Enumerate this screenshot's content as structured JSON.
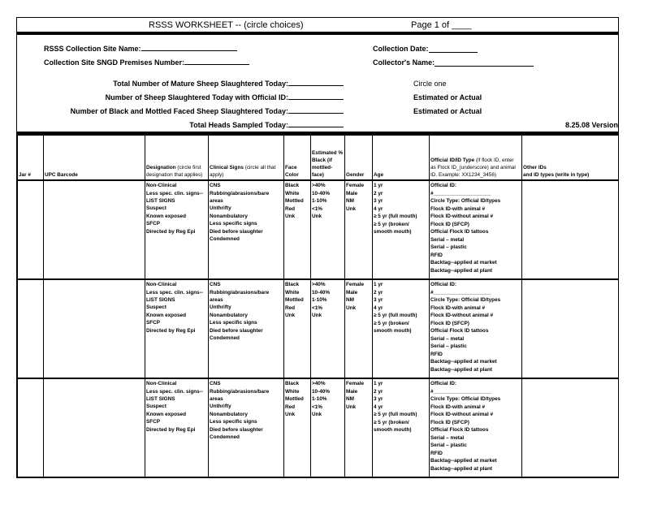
{
  "header": {
    "title": "RSSS WORKSHEET -- (circle choices)",
    "page": "Page 1 of ____"
  },
  "info": {
    "site_name": "RSSS Collection Site Name:",
    "premises": "Collection Site SNGD Premises Number:",
    "date": "Collection Date:",
    "collector": "Collector's Name:",
    "mature": "Total Number of Mature Sheep Slaughtered Today:",
    "official": "Number of Sheep Slaughtered Today with Official ID:",
    "black": "Number of Black and Mottled Faced Sheep Slaughtered Today:",
    "heads": "Total Heads Sampled Today:",
    "circle_one": "Circle one",
    "est1": "Estimated or Actual",
    "est2": "Estimated or Actual",
    "version": "8.25.08 Version"
  },
  "columns": {
    "jar": "Jar #",
    "upc": "UPC Barcode",
    "designation": "Designation",
    "designation_note": "(circle first designation that applies)",
    "clinical": "Clinical Signs",
    "clinical_note": "(circle all that apply)",
    "face": "Face Color",
    "est": "Estimated % Black",
    "est_note": "(if mottled-face)",
    "gender": "Gender",
    "age": "Age",
    "official": "Official ID/ID Type",
    "official_note": "(if flock ID, enter as Flock ID_(underscore) and animal ID. Example: XX1234_3456)",
    "other": "Other IDs",
    "other_note": "and ID types (write in type)"
  },
  "options": {
    "designation": [
      "Non-Clinical",
      "Less spec. clin. signs--LIST SIGNS",
      "Suspect",
      "Known exposed",
      "SFCP",
      "Directed by Reg Epi"
    ],
    "clinical": [
      "CNS",
      "Rubbing/abrasions/bare areas",
      "Unthrifty",
      "Nonambulatory",
      "Less specific signs",
      "Died before slaughter",
      "Condemned"
    ],
    "face": [
      "Black",
      "White",
      "Mottled",
      "Red",
      "Unk"
    ],
    "est": [
      ">40%",
      "10-40%",
      "1-10%",
      "<1%",
      "Unk"
    ],
    "gender": [
      "Female",
      "Male",
      "NM",
      "Unk"
    ],
    "age": [
      "1 yr",
      "2 yr",
      "3 yr",
      "4 yr",
      "≥ 5 yr (full  mouth)",
      "≥ 5 yr (broken/ smooth mouth)"
    ],
    "official": [
      "Official ID:",
      "#____________________",
      "Circle Type: Official ID/types",
      "Flock ID-with animal #",
      "Flock ID-without animal #",
      "Flock ID (SFCP)",
      "Official Flock ID tattoos",
      "Serial – metal",
      "Serial – plastic",
      "RFID",
      "Backtag--applied at market",
      "Backtag--applied at plant"
    ]
  },
  "rows": [
    {
      "jar": "",
      "upc": "",
      "other": ""
    },
    {
      "jar": "",
      "upc": "",
      "other": ""
    },
    {
      "jar": "",
      "upc": "",
      "other": ""
    }
  ]
}
